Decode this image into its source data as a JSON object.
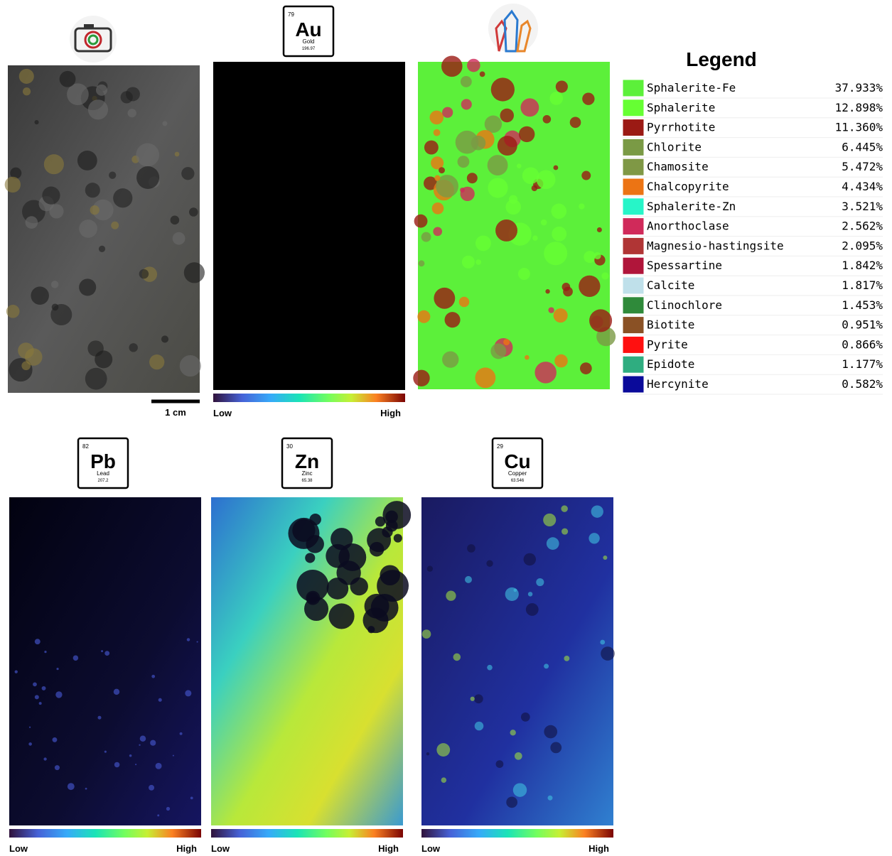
{
  "photo": {
    "scale_label": "1 cm"
  },
  "element_maps": [
    {
      "number": 79,
      "symbol": "Au",
      "name": "Gold",
      "mass": 196.97,
      "low_label": "Low",
      "high_label": "High"
    },
    {
      "number": 82,
      "symbol": "Pb",
      "name": "Lead",
      "mass": 207.2,
      "low_label": "Low",
      "high_label": "High"
    },
    {
      "number": 30,
      "symbol": "Zn",
      "name": "Zinc",
      "mass": 65.38,
      "low_label": "Low",
      "high_label": "High"
    },
    {
      "number": 29,
      "symbol": "Cu",
      "name": "Copper",
      "mass": 63.546,
      "low_label": "Low",
      "high_label": "High"
    }
  ],
  "legend": {
    "title": "Legend",
    "items": [
      {
        "name": "Sphalerite-Fe",
        "percent": "37.933%",
        "color": "#5cf03a"
      },
      {
        "name": "Sphalerite",
        "percent": "12.898%",
        "color": "#66ff33"
      },
      {
        "name": "Pyrrhotite",
        "percent": "11.360%",
        "color": "#9b1a14"
      },
      {
        "name": "Chlorite",
        "percent": "6.445%",
        "color": "#7a9a45"
      },
      {
        "name": "Chamosite",
        "percent": "5.472%",
        "color": "#7f9845"
      },
      {
        "name": "Chalcopyrite",
        "percent": "4.434%",
        "color": "#ec7414"
      },
      {
        "name": "Sphalerite-Zn",
        "percent": "3.521%",
        "color": "#27f5c8"
      },
      {
        "name": "Anorthoclase",
        "percent": "2.562%",
        "color": "#d02a5a"
      },
      {
        "name": "Magnesio-hastingsite",
        "percent": "2.095%",
        "color": "#b03535"
      },
      {
        "name": "Spessartine",
        "percent": "1.842%",
        "color": "#b0153a"
      },
      {
        "name": "Calcite",
        "percent": "1.817%",
        "color": "#bfe0ea"
      },
      {
        "name": "Clinochlore",
        "percent": "1.453%",
        "color": "#2f8a3a"
      },
      {
        "name": "Biotite",
        "percent": "0.951%",
        "color": "#8a5125"
      },
      {
        "name": "Pyrite",
        "percent": "0.866%",
        "color": "#ff1010"
      },
      {
        "name": "Epidote",
        "percent": "1.177%",
        "color": "#2fad80"
      },
      {
        "name": "Hercynite",
        "percent": "0.582%",
        "color": "#0a0a9a"
      }
    ]
  }
}
